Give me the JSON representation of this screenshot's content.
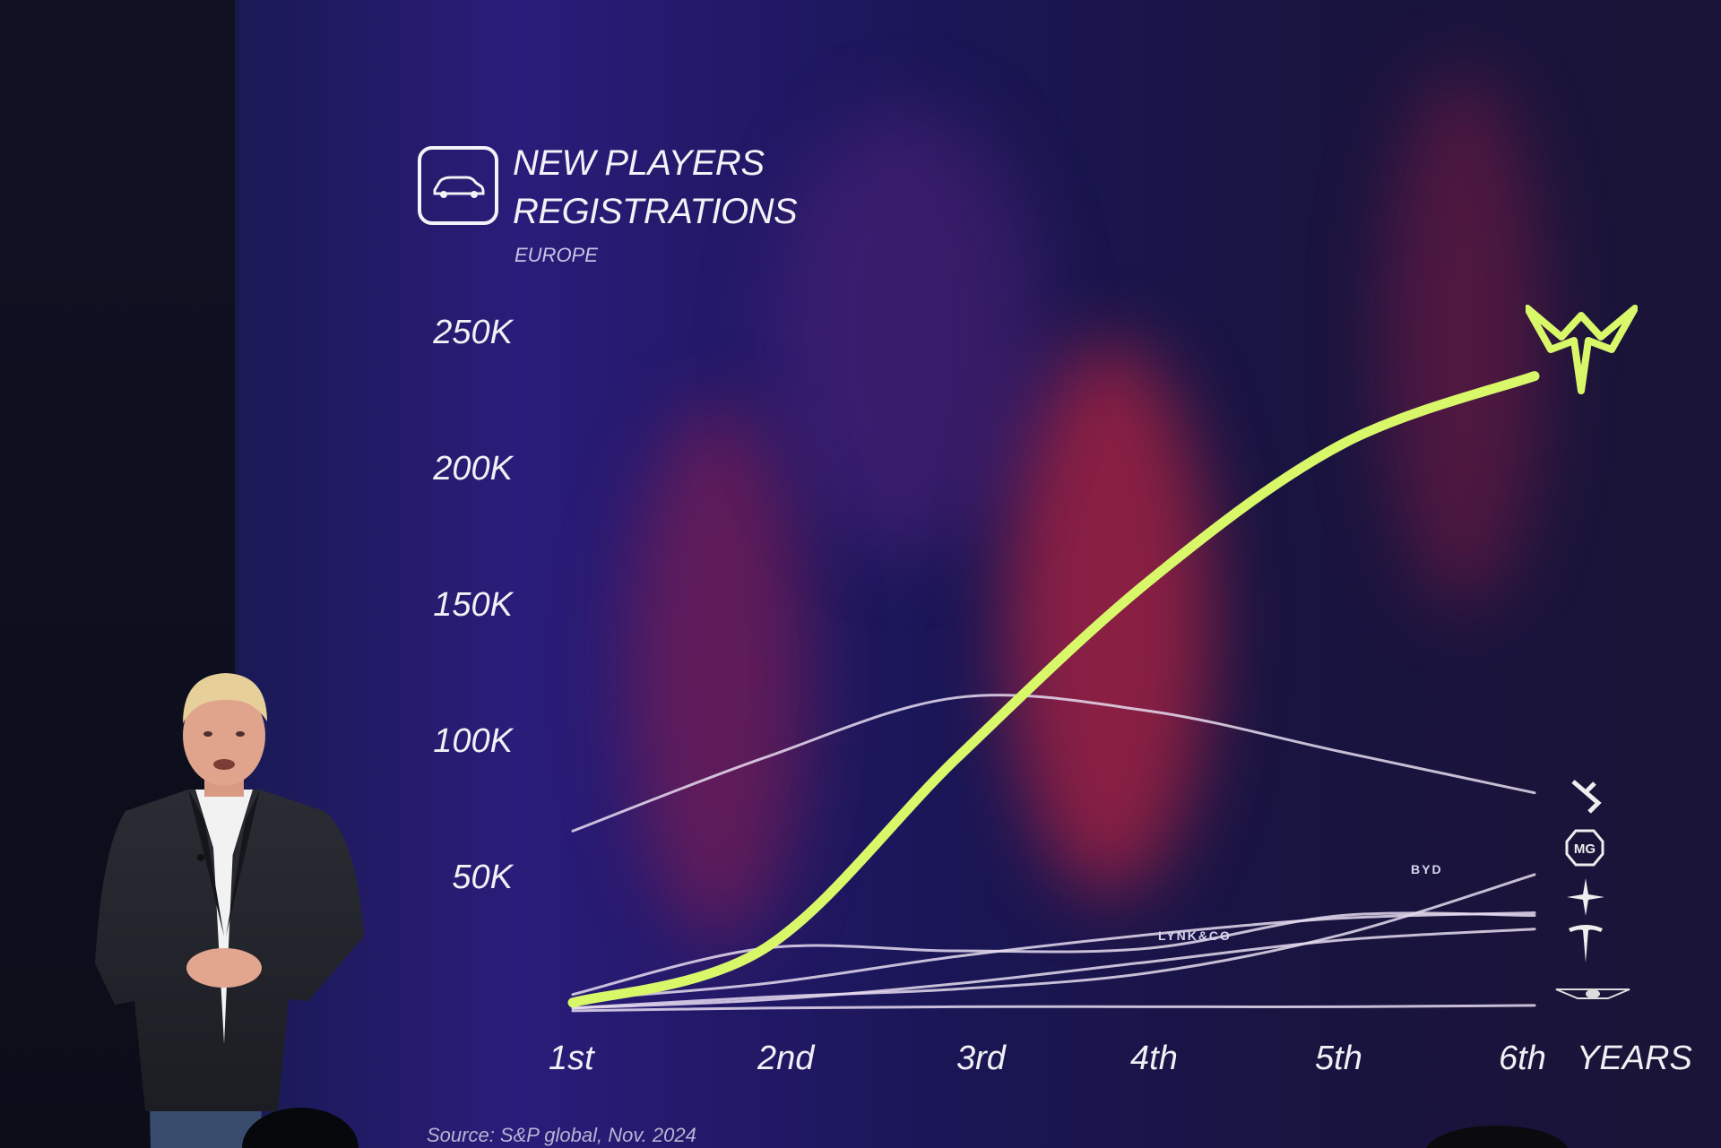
{
  "slide": {
    "title_line1": "NEW PLAYERS",
    "title_line2": "REGISTRATIONS",
    "region": "EUROPE",
    "source": "Source: S&P global, Nov. 2024",
    "x_unit": "YEARS",
    "brand_labels": [
      "BYD",
      "LYNK&CO"
    ]
  },
  "chart_data": {
    "type": "line",
    "title": "NEW PLAYERS REGISTRATIONS",
    "x": [
      "1st",
      "2nd",
      "3rd",
      "4th",
      "5th",
      "6th"
    ],
    "xlabel": "YEARS",
    "ylabel": "",
    "yticks": [
      "50K",
      "100K",
      "150K",
      "200K",
      "250K"
    ],
    "ylim": [
      0,
      260000
    ],
    "grid": false,
    "series": [
      {
        "values": [
          5000,
          25000,
          95000,
          160000,
          210000,
          235000
        ],
        "color": "#d8f86a"
      },
      {
        "values": [
          68000,
          95000,
          117000,
          112000,
          97000,
          82000
        ],
        "color": "#e6dcf0"
      },
      {
        "name": "BYD",
        "values": [
          3000,
          7000,
          10000,
          16000,
          30000,
          52000
        ],
        "color": "#e6dcf0"
      },
      {
        "name": "LYNK&CO",
        "values": [
          8000,
          25000,
          24000,
          25000,
          37000,
          37000
        ],
        "color": "#e6dcf0"
      },
      {
        "values": [
          6000,
          12000,
          22000,
          30000,
          36000,
          38000
        ],
        "color": "#e6dcf0"
      },
      {
        "values": [
          3000,
          6000,
          12000,
          20000,
          28000,
          32000
        ],
        "color": "#e6dcf0"
      },
      {
        "values": [
          2000,
          3000,
          3500,
          3500,
          3500,
          4000
        ],
        "color": "#e6dcf0"
      }
    ]
  }
}
